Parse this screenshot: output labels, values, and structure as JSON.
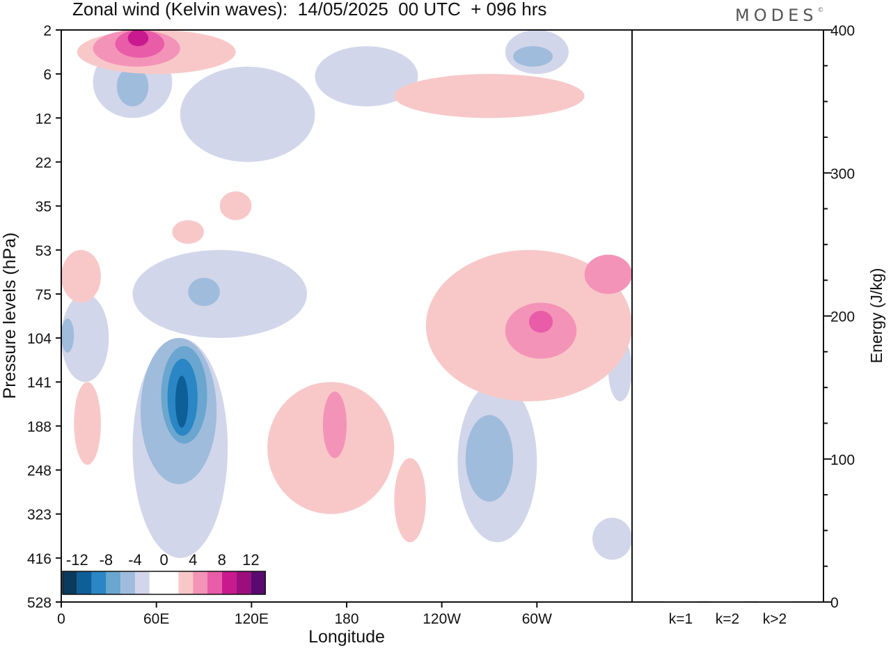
{
  "header": {
    "title": "Zonal wind (Kelvin waves):  14/05/2025  00 UTC  + 096 hrs",
    "brand": "MODES",
    "brand_mark": "©"
  },
  "chart_data": [
    {
      "type": "heatmap",
      "title": "Zonal wind (Kelvin waves):  14/05/2025  00 UTC  + 096 hrs",
      "xlabel": "Longitude",
      "ylabel": "Pressure levels (hPa)",
      "x_ticks": [
        "0",
        "60E",
        "120E",
        "180",
        "120W",
        "60W"
      ],
      "x_tick_values": [
        0,
        60,
        120,
        180,
        240,
        300
      ],
      "xlim": [
        0,
        360
      ],
      "y_ticks": [
        "2",
        "6",
        "12",
        "22",
        "35",
        "53",
        "75",
        "104",
        "141",
        "188",
        "248",
        "323",
        "416",
        "528"
      ],
      "y_scale": "pressure-levels",
      "colorbar": {
        "labels": [
          "-12",
          "-8",
          "-4",
          "0",
          "4",
          "8",
          "12"
        ],
        "colors": [
          "#0a3a5c",
          "#0e5e98",
          "#2a86c4",
          "#6aa6cf",
          "#a0bcdc",
          "#d2d6ea",
          "#ffffff",
          "#ffffff",
          "#f8c8c8",
          "#f493b8",
          "#e85ca8",
          "#c81a8e",
          "#9c0e7c",
          "#5a0a6e"
        ]
      },
      "contour_regions": [
        {
          "level": -2,
          "lon": [
            0,
            30
          ],
          "level_range": [
            "75",
            "141"
          ]
        },
        {
          "level": -4,
          "lon": [
            0,
            8
          ],
          "level_range": [
            "90",
            "115"
          ]
        },
        {
          "level": -2,
          "lon": [
            45,
            105
          ],
          "level_range": [
            "104",
            "416"
          ]
        },
        {
          "level": -4,
          "lon": [
            50,
            98
          ],
          "level_range": [
            "104",
            "270"
          ]
        },
        {
          "level": -6,
          "lon": [
            63,
            92
          ],
          "level_range": [
            "110",
            "210"
          ]
        },
        {
          "level": -8,
          "lon": [
            67,
            86
          ],
          "level_range": [
            "120",
            "200"
          ]
        },
        {
          "level": -10,
          "lon": [
            72,
            80
          ],
          "level_range": [
            "135",
            "190"
          ]
        },
        {
          "level": -2,
          "lon": [
            45,
            155
          ],
          "level_range": [
            "53",
            "104"
          ]
        },
        {
          "level": -4,
          "lon": [
            80,
            100
          ],
          "level_range": [
            "66",
            "82"
          ]
        },
        {
          "level": -2,
          "lon": [
            20,
            70
          ],
          "level_range": [
            "3",
            "12"
          ]
        },
        {
          "level": -4,
          "lon": [
            35,
            55
          ],
          "level_range": [
            "5",
            "10"
          ]
        },
        {
          "level": -2,
          "lon": [
            75,
            160
          ],
          "level_range": [
            "5",
            "22"
          ]
        },
        {
          "level": -2,
          "lon": [
            160,
            225
          ],
          "level_range": [
            "3",
            "10"
          ]
        },
        {
          "level": -2,
          "lon": [
            250,
            300
          ],
          "level_range": [
            "141",
            "380"
          ]
        },
        {
          "level": -4,
          "lon": [
            255,
            285
          ],
          "level_range": [
            "175",
            "300"
          ]
        },
        {
          "level": -2,
          "lon": [
            280,
            320
          ],
          "level_range": [
            "2",
            "6"
          ]
        },
        {
          "level": -4,
          "lon": [
            285,
            310
          ],
          "level_range": [
            "3",
            "5"
          ]
        },
        {
          "level": -2,
          "lon": [
            335,
            360
          ],
          "level_range": [
            "330",
            "420"
          ]
        },
        {
          "level": -2,
          "lon": [
            345,
            360
          ],
          "level_range": [
            "104",
            "160"
          ]
        },
        {
          "level": 2,
          "lon": [
            10,
            110
          ],
          "level_range": [
            "2",
            "6"
          ]
        },
        {
          "level": 4,
          "lon": [
            20,
            75
          ],
          "level_range": [
            "2",
            "5"
          ]
        },
        {
          "level": 6,
          "lon": [
            34,
            65
          ],
          "level_range": [
            "2",
            "4"
          ]
        },
        {
          "level": 8,
          "lon": [
            42,
            55
          ],
          "level_range": [
            "2",
            "3"
          ]
        },
        {
          "level": 2,
          "lon": [
            0,
            25
          ],
          "level_range": [
            "53",
            "80"
          ]
        },
        {
          "level": 2,
          "lon": [
            8,
            25
          ],
          "level_range": [
            "141",
            "240"
          ]
        },
        {
          "level": 2,
          "lon": [
            130,
            210
          ],
          "level_range": [
            "141",
            "323"
          ]
        },
        {
          "level": 4,
          "lon": [
            165,
            180
          ],
          "level_range": [
            "150",
            "230"
          ]
        },
        {
          "level": 2,
          "lon": [
            210,
            230
          ],
          "level_range": [
            "230",
            "380"
          ]
        },
        {
          "level": 2,
          "lon": [
            230,
            360
          ],
          "level_range": [
            "53",
            "160"
          ]
        },
        {
          "level": 4,
          "lon": [
            280,
            325
          ],
          "level_range": [
            "80",
            "120"
          ]
        },
        {
          "level": 6,
          "lon": [
            295,
            310
          ],
          "level_range": [
            "85",
            "100"
          ]
        },
        {
          "level": 4,
          "lon": [
            330,
            360
          ],
          "level_range": [
            "55",
            "75"
          ]
        },
        {
          "level": 2,
          "lon": [
            210,
            330
          ],
          "level_range": [
            "6",
            "12"
          ]
        },
        {
          "level": 2,
          "lon": [
            100,
            120
          ],
          "level_range": [
            "30",
            "40"
          ]
        },
        {
          "level": 2,
          "lon": [
            70,
            90
          ],
          "level_range": [
            "40",
            "50"
          ]
        }
      ]
    },
    {
      "type": "bar",
      "categories": [
        "k=1",
        "k=2",
        "k>2"
      ],
      "values": [
        0.5,
        0.5,
        0.5
      ],
      "ylabel": "Energy (J/kg)",
      "ylim": [
        0,
        400
      ],
      "y_ticks": [
        0,
        100,
        200,
        300,
        400
      ]
    }
  ]
}
